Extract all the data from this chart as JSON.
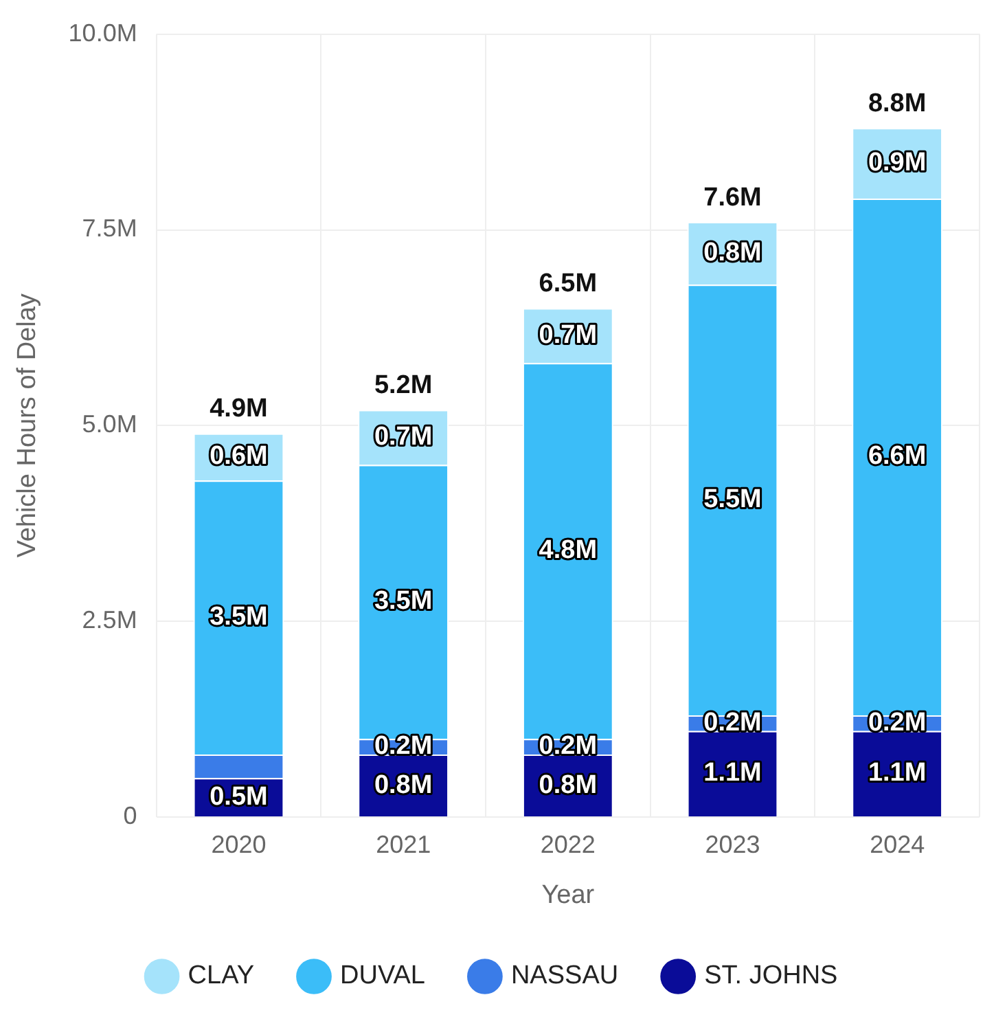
{
  "chart_data": {
    "type": "bar",
    "stacked": true,
    "xlabel": "Year",
    "ylabel": "Vehicle Hours of Delay",
    "categories": [
      "2020",
      "2021",
      "2022",
      "2023",
      "2024"
    ],
    "series": [
      {
        "name": "ST. JOHNS",
        "color": "#0a0c98",
        "values": [
          0.5,
          0.8,
          0.8,
          1.1,
          1.1
        ],
        "value_labels": [
          "0.5M",
          "0.8M",
          "0.8M",
          "1.1M",
          "1.1M"
        ]
      },
      {
        "name": "NASSAU",
        "color": "#3a7ce8",
        "values": [
          0.3,
          0.2,
          0.2,
          0.2,
          0.2
        ],
        "value_labels": [
          null,
          "0.2M",
          "0.2M",
          "0.2M",
          "0.2M"
        ]
      },
      {
        "name": "DUVAL",
        "color": "#3bbdf8",
        "values": [
          3.5,
          3.5,
          4.8,
          5.5,
          6.6
        ],
        "value_labels": [
          "3.5M",
          "3.5M",
          "4.8M",
          "5.5M",
          "6.6M"
        ]
      },
      {
        "name": "CLAY",
        "color": "#a5e3fb",
        "values": [
          0.6,
          0.7,
          0.7,
          0.8,
          0.9
        ],
        "value_labels": [
          "0.6M",
          "0.7M",
          "0.7M",
          "0.8M",
          "0.9M"
        ]
      }
    ],
    "totals": [
      "4.9M",
      "5.2M",
      "6.5M",
      "7.6M",
      "8.8M"
    ],
    "ylim": [
      0,
      10
    ],
    "yticks": [
      {
        "value": 0,
        "label": "0"
      },
      {
        "value": 2.5,
        "label": "2.5M"
      },
      {
        "value": 5,
        "label": "5.0M"
      },
      {
        "value": 7.5,
        "label": "7.5M"
      },
      {
        "value": 10,
        "label": "10.0M"
      }
    ],
    "grid": true,
    "legend": "bottom"
  }
}
